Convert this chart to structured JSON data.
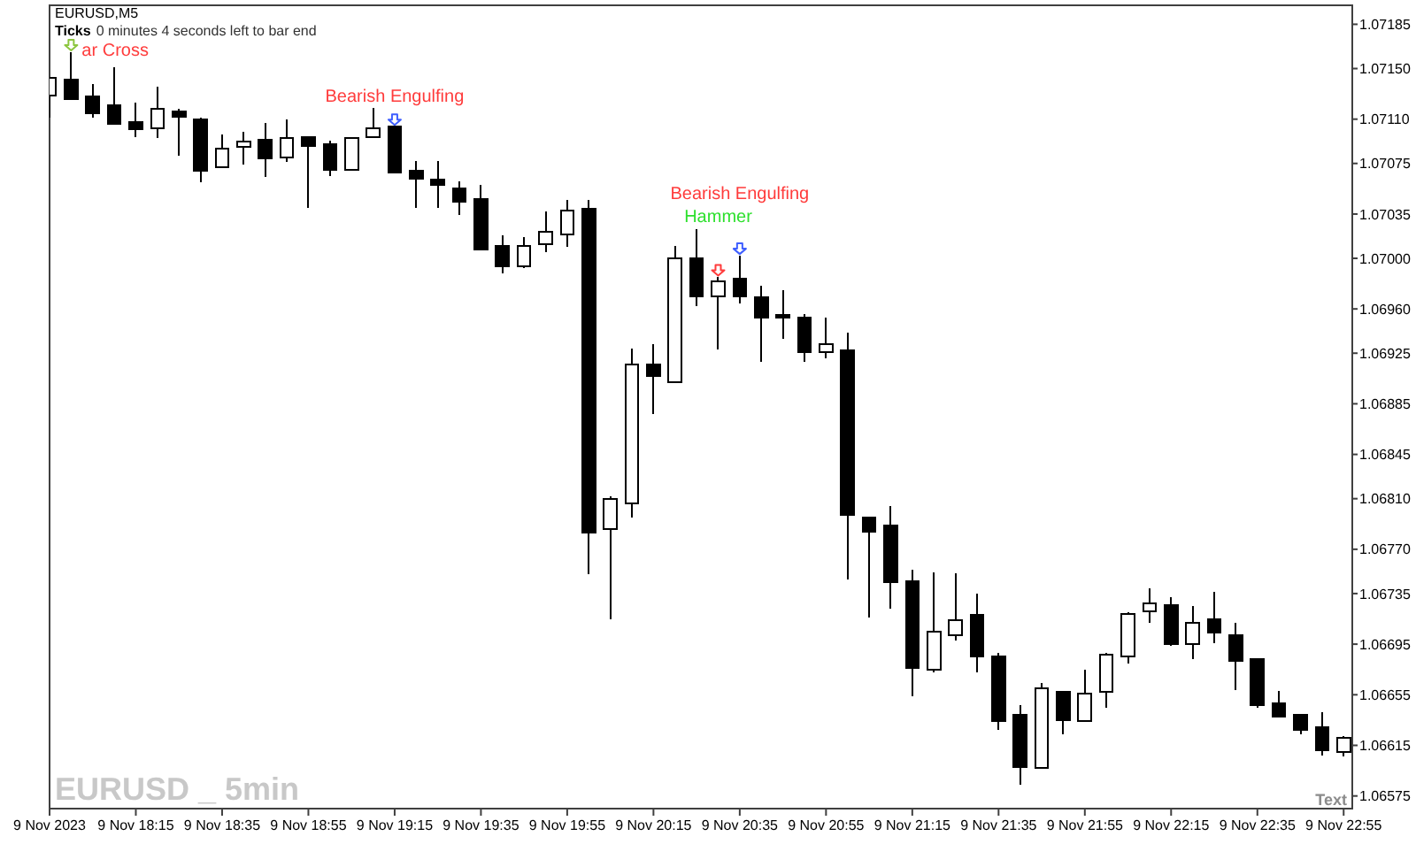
{
  "chart_data": {
    "type": "candlestick",
    "title": "EURUSD,M5",
    "x": [
      "2023-11-09T17:55",
      "2023-11-09T18:00",
      "2023-11-09T18:05",
      "2023-11-09T18:10",
      "2023-11-09T18:15",
      "2023-11-09T18:20",
      "2023-11-09T18:25",
      "2023-11-09T18:30",
      "2023-11-09T18:35",
      "2023-11-09T18:40",
      "2023-11-09T18:45",
      "2023-11-09T18:50",
      "2023-11-09T18:55",
      "2023-11-09T19:00",
      "2023-11-09T19:05",
      "2023-11-09T19:10",
      "2023-11-09T19:15",
      "2023-11-09T19:20",
      "2023-11-09T19:25",
      "2023-11-09T19:30",
      "2023-11-09T19:35",
      "2023-11-09T19:40",
      "2023-11-09T19:45",
      "2023-11-09T19:50",
      "2023-11-09T19:55",
      "2023-11-09T20:00",
      "2023-11-09T20:05",
      "2023-11-09T20:10",
      "2023-11-09T20:15",
      "2023-11-09T20:20",
      "2023-11-09T20:25",
      "2023-11-09T20:30",
      "2023-11-09T20:35",
      "2023-11-09T20:40",
      "2023-11-09T20:45",
      "2023-11-09T20:50",
      "2023-11-09T20:55",
      "2023-11-09T21:00",
      "2023-11-09T21:05",
      "2023-11-09T21:10",
      "2023-11-09T21:15",
      "2023-11-09T21:20",
      "2023-11-09T21:25",
      "2023-11-09T21:30",
      "2023-11-09T21:35",
      "2023-11-09T21:40",
      "2023-11-09T21:45",
      "2023-11-09T21:50",
      "2023-11-09T21:55",
      "2023-11-09T22:00",
      "2023-11-09T22:05",
      "2023-11-09T22:10",
      "2023-11-09T22:15",
      "2023-11-09T22:20",
      "2023-11-09T22:25",
      "2023-11-09T22:30",
      "2023-11-09T22:35",
      "2023-11-09T22:40",
      "2023-11-09T22:45",
      "2023-11-09T22:50",
      "2023-11-09T22:55"
    ],
    "ohlc": [
      [
        1.07129,
        1.07143,
        1.07111,
        1.07143
      ],
      [
        1.07141,
        1.07163,
        1.07126,
        1.07126
      ],
      [
        1.07128,
        1.07138,
        1.07111,
        1.07115
      ],
      [
        1.07121,
        1.07151,
        1.07106,
        1.07106
      ],
      [
        1.07108,
        1.07123,
        1.07096,
        1.07102
      ],
      [
        1.07103,
        1.07136,
        1.07095,
        1.07118
      ],
      [
        1.07116,
        1.07118,
        1.07081,
        1.07112
      ],
      [
        1.0711,
        1.07111,
        1.0706,
        1.07069
      ],
      [
        1.07072,
        1.07098,
        1.07072,
        1.07087
      ],
      [
        1.07088,
        1.071,
        1.07074,
        1.07092
      ],
      [
        1.07094,
        1.07107,
        1.07064,
        1.07079
      ],
      [
        1.0708,
        1.0711,
        1.07076,
        1.07095
      ],
      [
        1.07096,
        1.07096,
        1.0704,
        1.07089
      ],
      [
        1.0709,
        1.07093,
        1.07065,
        1.0707
      ],
      [
        1.0707,
        1.07096,
        1.0707,
        1.07095
      ],
      [
        1.07096,
        1.07119,
        1.07096,
        1.07103
      ],
      [
        1.07104,
        1.07104,
        1.07068,
        1.07068
      ],
      [
        1.07069,
        1.07077,
        1.0704,
        1.07063
      ],
      [
        1.07062,
        1.07077,
        1.0704,
        1.07058
      ],
      [
        1.07055,
        1.07061,
        1.07034,
        1.07045
      ],
      [
        1.07047,
        1.07058,
        1.07007,
        1.07007
      ],
      [
        1.0701,
        1.07018,
        1.06988,
        1.06994
      ],
      [
        1.06994,
        1.07017,
        1.06992,
        1.0701
      ],
      [
        1.07011,
        1.07037,
        1.07005,
        1.07021
      ],
      [
        1.07019,
        1.07046,
        1.07009,
        1.07038
      ],
      [
        1.07039,
        1.07046,
        1.0675,
        1.06783
      ],
      [
        1.06786,
        1.06812,
        1.06715,
        1.0681
      ],
      [
        1.06806,
        1.06929,
        1.06795,
        1.06916
      ],
      [
        1.06916,
        1.06932,
        1.06877,
        1.06907
      ],
      [
        1.06902,
        1.0701,
        1.06902,
        1.07
      ],
      [
        1.07,
        1.07023,
        1.06962,
        1.0697
      ],
      [
        1.0697,
        1.06985,
        1.06928,
        1.06982
      ],
      [
        1.06984,
        1.07002,
        1.06964,
        1.0697
      ],
      [
        1.06969,
        1.06978,
        1.06918,
        1.06953
      ],
      [
        1.06955,
        1.06975,
        1.06936,
        1.06953
      ],
      [
        1.06953,
        1.06956,
        1.06918,
        1.06926
      ],
      [
        1.06926,
        1.06953,
        1.06921,
        1.06932
      ],
      [
        1.06927,
        1.06941,
        1.06746,
        1.06797
      ],
      [
        1.06795,
        1.06796,
        1.06716,
        1.06784
      ],
      [
        1.06789,
        1.06804,
        1.06723,
        1.06744
      ],
      [
        1.06745,
        1.06754,
        1.06654,
        1.06676
      ],
      [
        1.06675,
        1.06752,
        1.06673,
        1.06705
      ],
      [
        1.06702,
        1.06751,
        1.06698,
        1.06714
      ],
      [
        1.06718,
        1.06735,
        1.06673,
        1.06685
      ],
      [
        1.06685,
        1.06688,
        1.06627,
        1.06634
      ],
      [
        1.06639,
        1.06647,
        1.06584,
        1.06598
      ],
      [
        1.06597,
        1.06664,
        1.06597,
        1.0666
      ],
      [
        1.06657,
        1.06657,
        1.06624,
        1.06635
      ],
      [
        1.06634,
        1.06675,
        1.06634,
        1.06656
      ],
      [
        1.06657,
        1.06688,
        1.06645,
        1.06687
      ],
      [
        1.06685,
        1.0672,
        1.0668,
        1.06719
      ],
      [
        1.06721,
        1.06739,
        1.06712,
        1.06727
      ],
      [
        1.06726,
        1.06732,
        1.06694,
        1.06695
      ],
      [
        1.06695,
        1.06725,
        1.06683,
        1.06712
      ],
      [
        1.06715,
        1.06736,
        1.06696,
        1.06704
      ],
      [
        1.06702,
        1.06712,
        1.06659,
        1.06682
      ],
      [
        1.06683,
        1.06683,
        1.06645,
        1.06647
      ],
      [
        1.06648,
        1.06658,
        1.06637,
        1.06638
      ],
      [
        1.06639,
        1.06639,
        1.06624,
        1.06627
      ],
      [
        1.06629,
        1.06641,
        1.06607,
        1.06611
      ],
      [
        1.0661,
        1.06622,
        1.06606,
        1.06621
      ]
    ],
    "xlim": [
      "2023-11-09T17:55",
      "2023-11-09T22:57"
    ],
    "xticks": [
      {
        "value": "2023-11-09T17:55",
        "label": "9 Nov 2023"
      },
      {
        "value": "2023-11-09T18:15",
        "label": "9 Nov 18:15"
      },
      {
        "value": "2023-11-09T18:35",
        "label": "9 Nov 18:35"
      },
      {
        "value": "2023-11-09T18:55",
        "label": "9 Nov 18:55"
      },
      {
        "value": "2023-11-09T19:15",
        "label": "9 Nov 19:15"
      },
      {
        "value": "2023-11-09T19:35",
        "label": "9 Nov 19:35"
      },
      {
        "value": "2023-11-09T19:55",
        "label": "9 Nov 19:55"
      },
      {
        "value": "2023-11-09T20:15",
        "label": "9 Nov 20:15"
      },
      {
        "value": "2023-11-09T20:35",
        "label": "9 Nov 20:35"
      },
      {
        "value": "2023-11-09T20:55",
        "label": "9 Nov 20:55"
      },
      {
        "value": "2023-11-09T21:15",
        "label": "9 Nov 21:15"
      },
      {
        "value": "2023-11-09T21:35",
        "label": "9 Nov 21:35"
      },
      {
        "value": "2023-11-09T21:55",
        "label": "9 Nov 21:55"
      },
      {
        "value": "2023-11-09T22:15",
        "label": "9 Nov 22:15"
      },
      {
        "value": "2023-11-09T22:35",
        "label": "9 Nov 22:35"
      },
      {
        "value": "2023-11-09T22:55",
        "label": "9 Nov 22:55"
      }
    ],
    "ylim": [
      1.06565,
      1.072
    ],
    "yticks": [
      1.07185,
      {
        "value": 1.0715,
        "label": "1.07150"
      },
      {
        "value": 1.0711,
        "label": "1.07110"
      },
      1.07075,
      1.07035,
      {
        "value": 1.07,
        "label": "1.07000"
      },
      {
        "value": 1.0696,
        "label": "1.06960"
      },
      1.06925,
      1.06885,
      1.06845,
      {
        "value": 1.0681,
        "label": "1.06810"
      },
      {
        "value": 1.0677,
        "label": "1.06770"
      },
      1.06735,
      1.06695,
      1.06655,
      1.06615,
      1.06575
    ],
    "annotations": [
      {
        "text": "ar Cross",
        "x": "2023-11-09T18:00",
        "y": 1.07163
      },
      {
        "text": "Bearish Engulfing",
        "x": "2023-11-09T19:15",
        "y": 1.07104
      },
      {
        "text": "Bearish Engulfing",
        "x": "2023-11-09T20:35",
        "y": 1.07002
      },
      {
        "text": "Hammer",
        "x": "2023-11-09T20:30",
        "y": 1.06985
      },
      "0 minutes 4 seconds left to bar end",
      "Ticks",
      "EURUSD _ 5min",
      "Text"
    ]
  }
}
